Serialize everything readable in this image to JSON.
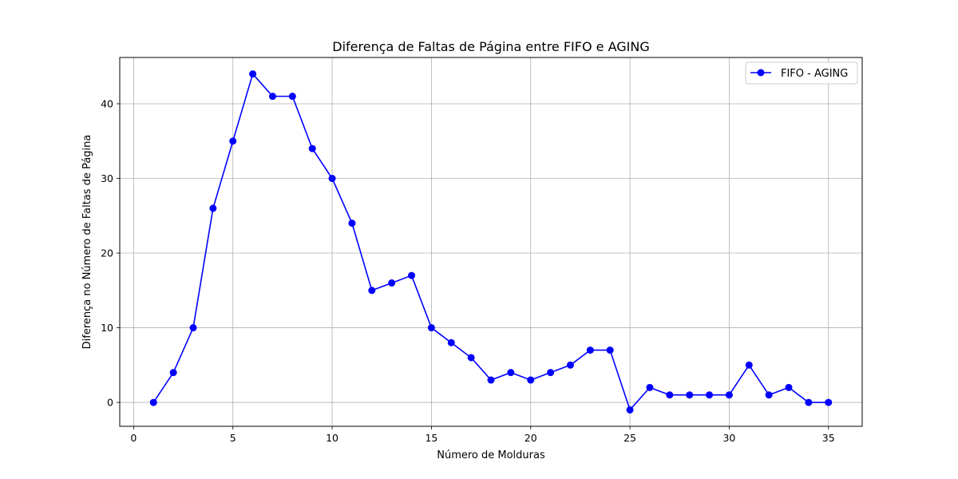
{
  "chart_data": {
    "type": "line",
    "title": "Diferença de Faltas de Página entre FIFO e AGING",
    "xlabel": "Número de Molduras",
    "ylabel": "Diferença no Número de Faltas de Página",
    "xlim": [
      -0.7,
      36.7
    ],
    "ylim": [
      -3.2,
      46.2
    ],
    "x_ticks": [
      0,
      5,
      10,
      15,
      20,
      25,
      30,
      35
    ],
    "y_ticks": [
      0,
      10,
      20,
      30,
      40
    ],
    "grid": true,
    "legend_position": "top-right",
    "series": [
      {
        "name": "FIFO - AGING",
        "color": "#0000ff",
        "marker": "circle",
        "x": [
          1,
          2,
          3,
          4,
          5,
          6,
          7,
          8,
          9,
          10,
          11,
          12,
          13,
          14,
          15,
          16,
          17,
          18,
          19,
          20,
          21,
          22,
          23,
          24,
          25,
          26,
          27,
          28,
          29,
          30,
          31,
          32,
          33,
          34,
          35
        ],
        "values": [
          0,
          4,
          10,
          26,
          35,
          44,
          41,
          41,
          34,
          30,
          24,
          15,
          16,
          17,
          10,
          8,
          6,
          3,
          4,
          3,
          4,
          5,
          7,
          7,
          -1,
          2,
          1,
          1,
          1,
          1,
          5,
          1,
          2,
          0,
          0
        ]
      }
    ]
  }
}
